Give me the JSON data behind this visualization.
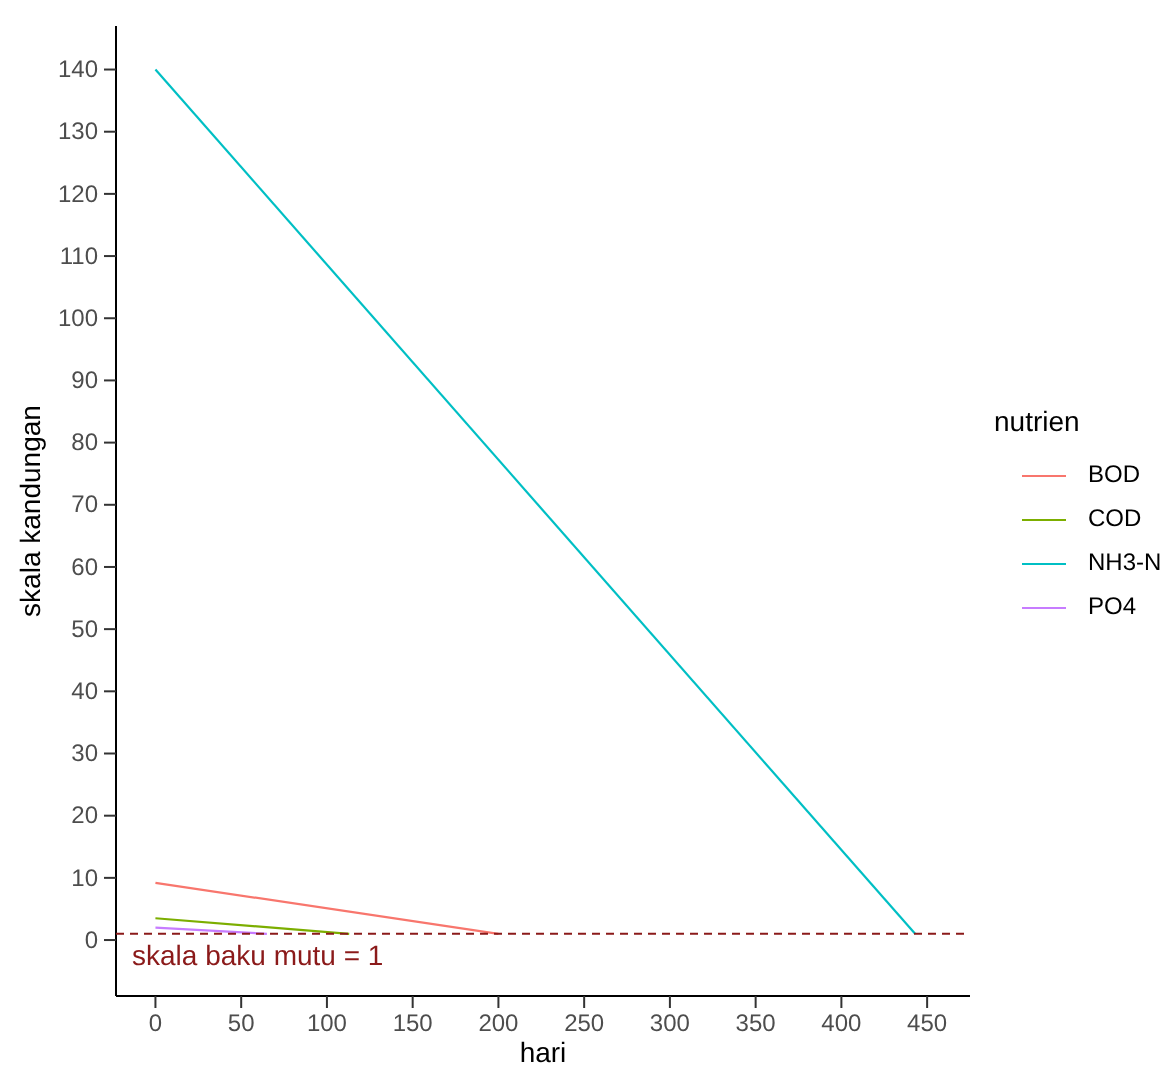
{
  "chart_data": {
    "type": "line",
    "xlabel": "hari",
    "ylabel": "skala kandungan",
    "legend_title": "nutrien",
    "legend": "right",
    "grid": false,
    "xlim": [
      -23,
      475
    ],
    "xticks": [
      0,
      50,
      100,
      150,
      200,
      250,
      300,
      350,
      400,
      450
    ],
    "ylim": [
      -9,
      147
    ],
    "yticks": [
      0,
      10,
      20,
      30,
      40,
      50,
      60,
      70,
      80,
      90,
      100,
      110,
      120,
      130,
      140
    ],
    "series": [
      {
        "name": "BOD",
        "color": "#f8766d",
        "x": [
          0,
          200
        ],
        "values": [
          9.2,
          1
        ]
      },
      {
        "name": "COD",
        "color": "#7cae00",
        "x": [
          0,
          113
        ],
        "values": [
          3.5,
          1
        ]
      },
      {
        "name": "NH3-N",
        "color": "#00bfc4",
        "x": [
          0,
          443
        ],
        "values": [
          140,
          1
        ]
      },
      {
        "name": "PO4",
        "color": "#c77cff",
        "x": [
          0,
          65
        ],
        "values": [
          2,
          1
        ]
      }
    ],
    "ref_lines": [
      {
        "axis": "y",
        "value": 1,
        "label": "skala baku mutu = 1",
        "color": "#8b1a1a",
        "line_style": "dashed"
      }
    ]
  }
}
